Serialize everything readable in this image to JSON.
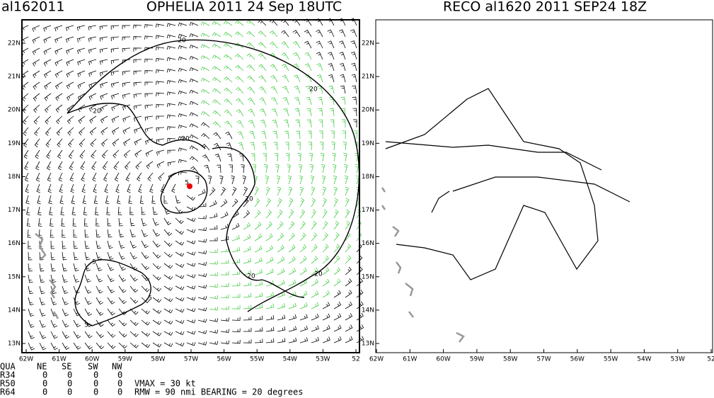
{
  "left_panel": {
    "storm_id": "al162011",
    "title": "OPHELIA 2011 24 Sep 18UTC",
    "x_ticks": [
      "62W",
      "61W",
      "60W",
      "59W",
      "58W",
      "57W",
      "56W",
      "55W",
      "54W",
      "53W",
      "52"
    ],
    "y_ticks": [
      "13N",
      "14N",
      "15N",
      "16N",
      "17N",
      "18N",
      "19N",
      "20N",
      "21N",
      "22N"
    ],
    "contour_labels": [
      "20",
      "20",
      "20",
      "20",
      "20",
      "20",
      "20",
      "5",
      "5",
      "5",
      "5"
    ]
  },
  "right_panel": {
    "title": "RECO al1620 2011 SEP24 18Z",
    "x_ticks": [
      "62W",
      "61W",
      "60W",
      "59W",
      "58W",
      "57W",
      "56W",
      "55W",
      "54W",
      "53W",
      "52"
    ],
    "y_ticks": [
      "13N",
      "14N",
      "15N",
      "16N",
      "17N",
      "18N",
      "19N",
      "20N",
      "21N",
      "22N"
    ]
  },
  "footer": {
    "header": [
      "QUA",
      "NE",
      "SE",
      "SW",
      "NW"
    ],
    "rows": [
      [
        "R34",
        "0",
        "0",
        "0",
        "0"
      ],
      [
        "R50",
        "0",
        "0",
        "0",
        "0"
      ],
      [
        "R64",
        "0",
        "0",
        "0",
        "0"
      ]
    ],
    "vmax": "VMAX =   30 kt",
    "rmw": "RMW  =  90 nmi BEARING =   20 degrees"
  }
}
